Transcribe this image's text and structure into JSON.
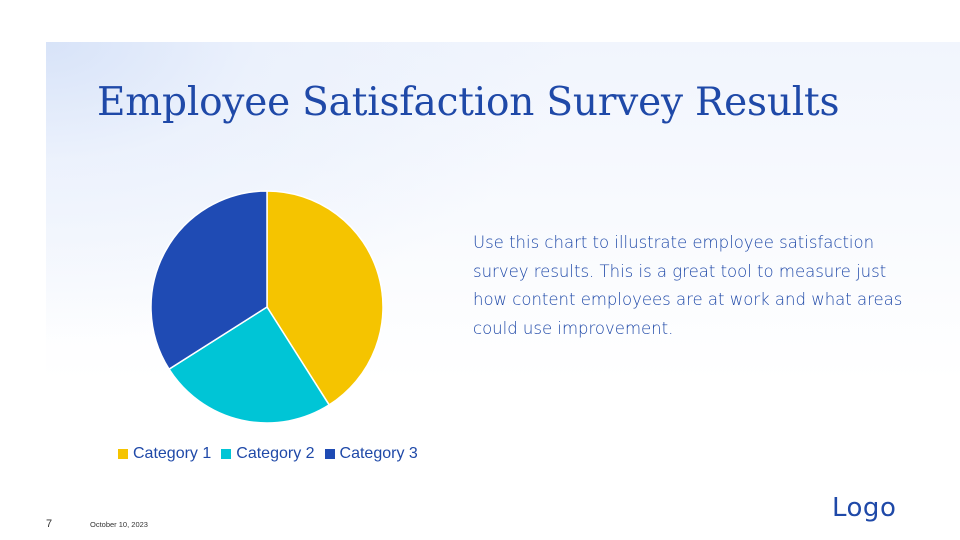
{
  "slide": {
    "title": "Employee Satisfaction Survey Results",
    "description": "Use this chart to illustrate employee satisfaction survey results. This is a great tool to measure just how content employees are at work and what areas could use improvement.",
    "page_number": "7",
    "date": "October 10, 2023",
    "logo": "Logo"
  },
  "colors": {
    "accent": "#1f49a8",
    "category_1": "#f5c400",
    "category_2": "#00c5d6",
    "category_3": "#1f4bb4"
  },
  "chart_data": {
    "type": "pie",
    "title": "",
    "categories": [
      "Category 1",
      "Category 2",
      "Category 3"
    ],
    "values": [
      41,
      25,
      34
    ],
    "colors": [
      "#f5c400",
      "#00c5d6",
      "#1f4bb4"
    ],
    "start_angle_deg": 0,
    "direction": "clockwise",
    "legend_position": "bottom"
  }
}
